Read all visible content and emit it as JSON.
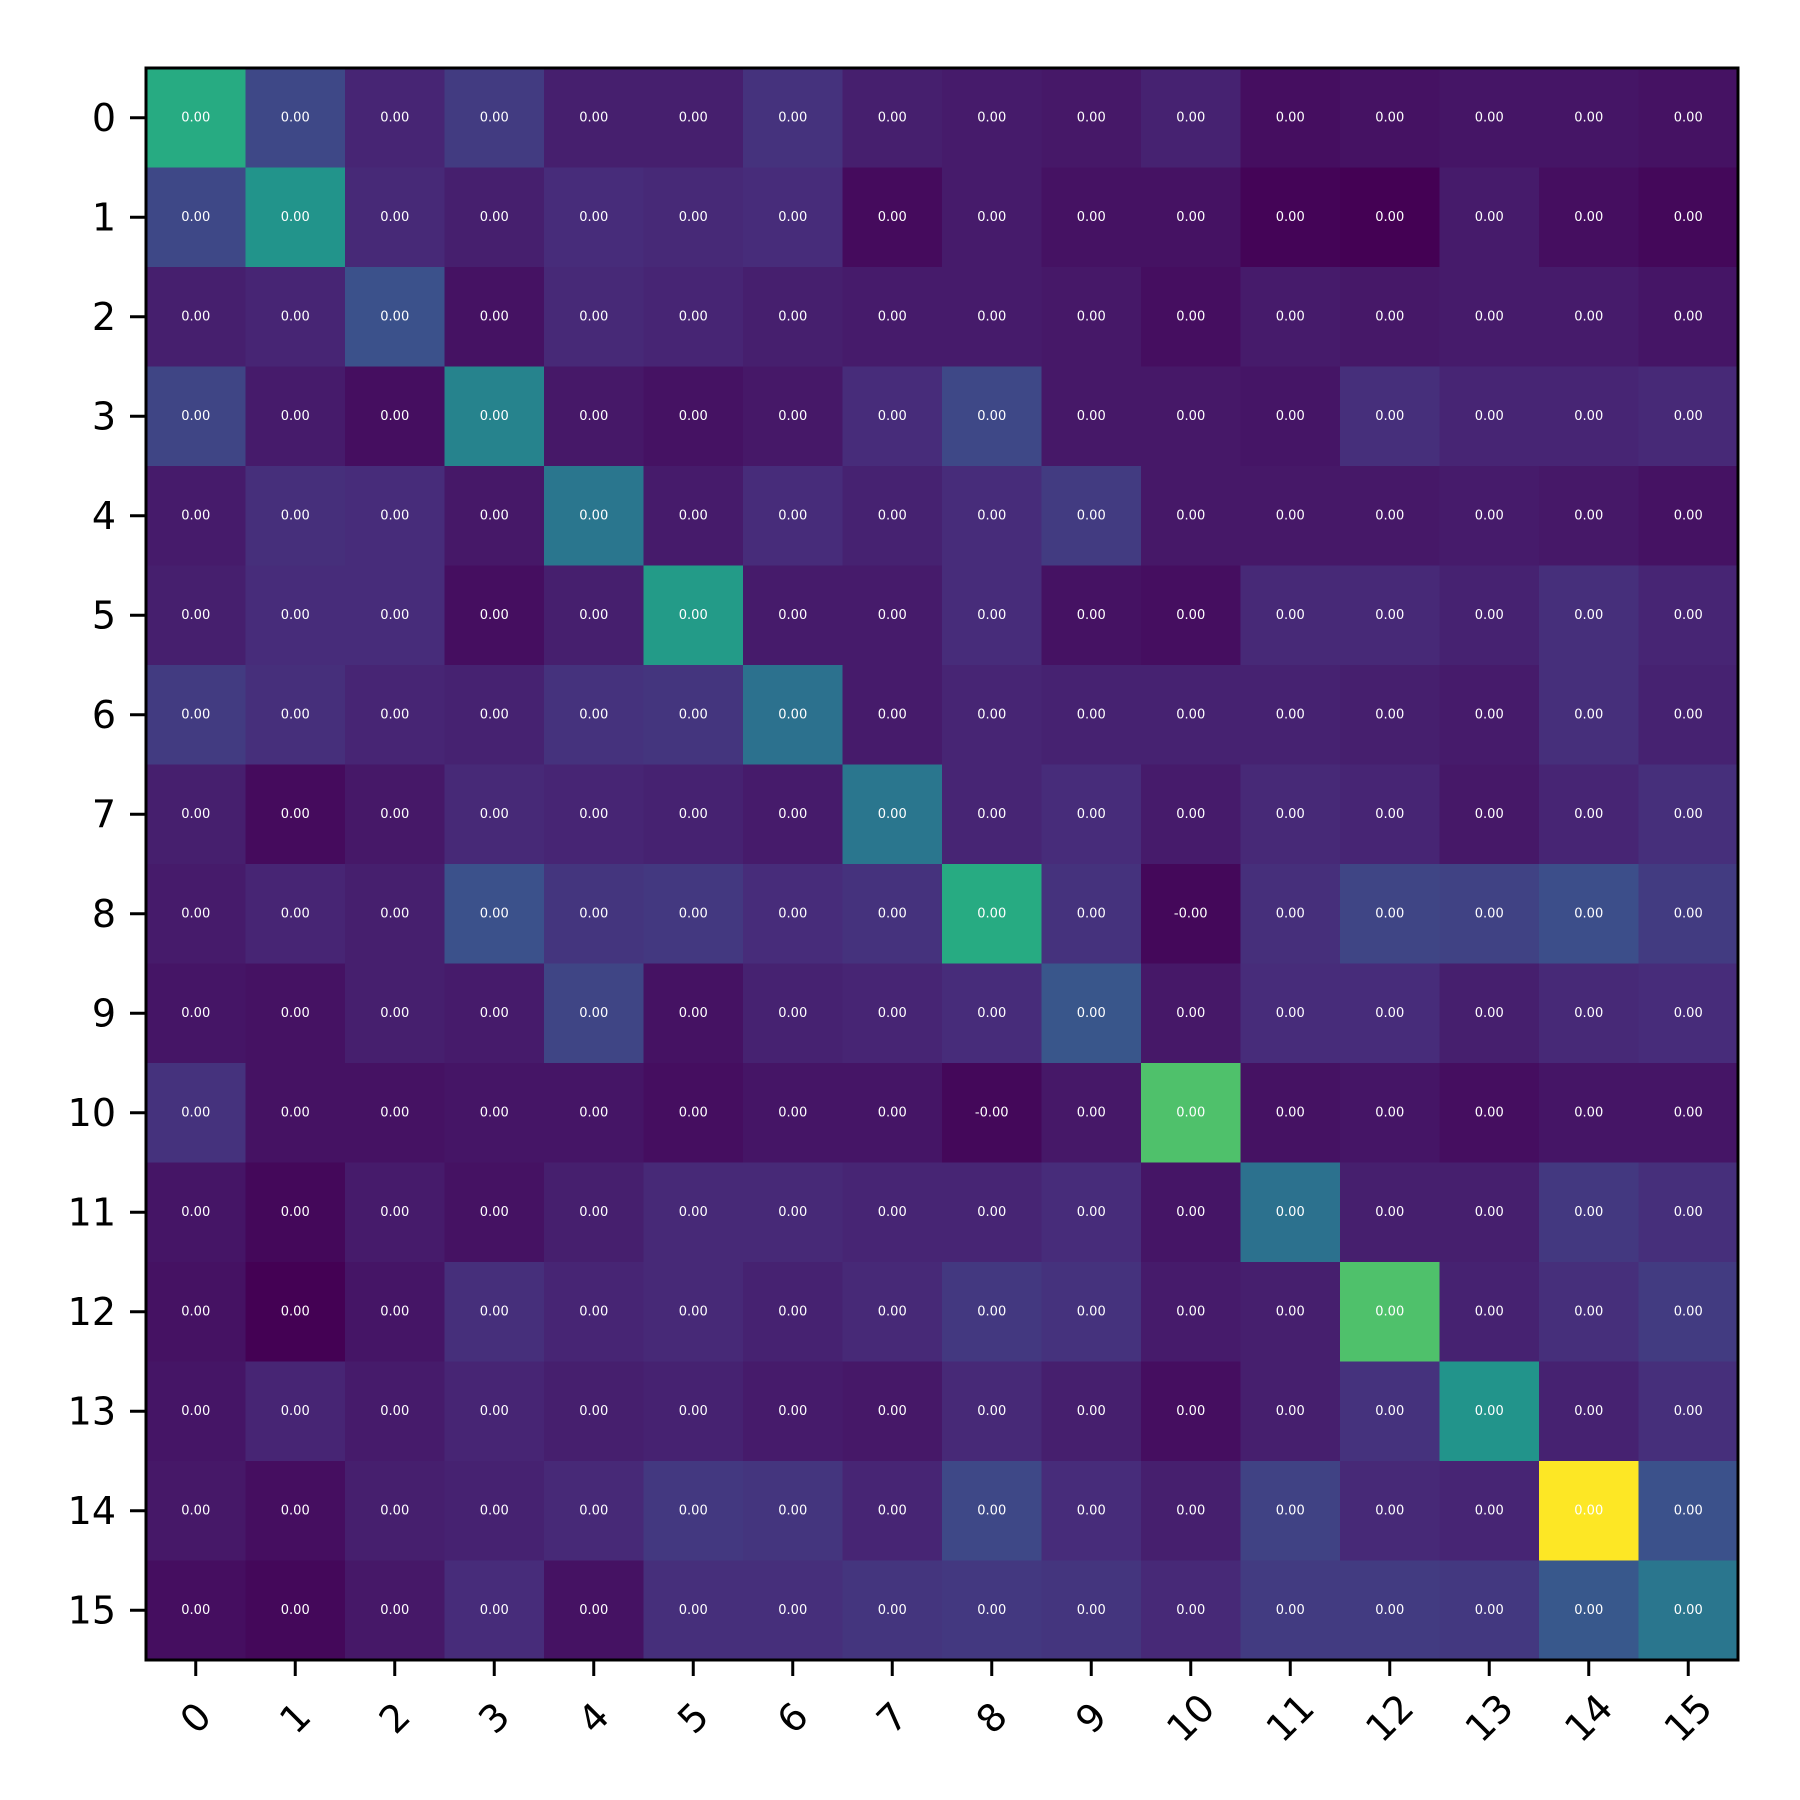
{
  "chart_data": {
    "type": "heatmap",
    "title": "",
    "xlabel": "",
    "ylabel": "",
    "colormap": "viridis",
    "x_tick_labels": [
      "0",
      "1",
      "2",
      "3",
      "4",
      "5",
      "6",
      "7",
      "8",
      "9",
      "10",
      "11",
      "12",
      "13",
      "14",
      "15"
    ],
    "y_tick_labels": [
      "0",
      "1",
      "2",
      "3",
      "4",
      "5",
      "6",
      "7",
      "8",
      "9",
      "10",
      "11",
      "12",
      "13",
      "14",
      "15"
    ],
    "x_tick_rotation_deg": -45,
    "cell_labels": [
      [
        "0.00",
        "0.00",
        "0.00",
        "0.00",
        "0.00",
        "0.00",
        "0.00",
        "0.00",
        "0.00",
        "0.00",
        "0.00",
        "0.00",
        "0.00",
        "0.00",
        "0.00",
        "0.00"
      ],
      [
        "0.00",
        "0.00",
        "0.00",
        "0.00",
        "0.00",
        "0.00",
        "0.00",
        "0.00",
        "0.00",
        "0.00",
        "0.00",
        "0.00",
        "0.00",
        "0.00",
        "0.00",
        "0.00"
      ],
      [
        "0.00",
        "0.00",
        "0.00",
        "0.00",
        "0.00",
        "0.00",
        "0.00",
        "0.00",
        "0.00",
        "0.00",
        "0.00",
        "0.00",
        "0.00",
        "0.00",
        "0.00",
        "0.00"
      ],
      [
        "0.00",
        "0.00",
        "0.00",
        "0.00",
        "0.00",
        "0.00",
        "0.00",
        "0.00",
        "0.00",
        "0.00",
        "0.00",
        "0.00",
        "0.00",
        "0.00",
        "0.00",
        "0.00"
      ],
      [
        "0.00",
        "0.00",
        "0.00",
        "0.00",
        "0.00",
        "0.00",
        "0.00",
        "0.00",
        "0.00",
        "0.00",
        "0.00",
        "0.00",
        "0.00",
        "0.00",
        "0.00",
        "0.00"
      ],
      [
        "0.00",
        "0.00",
        "0.00",
        "0.00",
        "0.00",
        "0.00",
        "0.00",
        "0.00",
        "0.00",
        "0.00",
        "0.00",
        "0.00",
        "0.00",
        "0.00",
        "0.00",
        "0.00"
      ],
      [
        "0.00",
        "0.00",
        "0.00",
        "0.00",
        "0.00",
        "0.00",
        "0.00",
        "0.00",
        "0.00",
        "0.00",
        "0.00",
        "0.00",
        "0.00",
        "0.00",
        "0.00",
        "0.00"
      ],
      [
        "0.00",
        "0.00",
        "0.00",
        "0.00",
        "0.00",
        "0.00",
        "0.00",
        "0.00",
        "0.00",
        "0.00",
        "0.00",
        "0.00",
        "0.00",
        "0.00",
        "0.00",
        "0.00"
      ],
      [
        "0.00",
        "0.00",
        "0.00",
        "0.00",
        "0.00",
        "0.00",
        "0.00",
        "0.00",
        "0.00",
        "0.00",
        "-0.00",
        "0.00",
        "0.00",
        "0.00",
        "0.00",
        "0.00"
      ],
      [
        "0.00",
        "0.00",
        "0.00",
        "0.00",
        "0.00",
        "0.00",
        "0.00",
        "0.00",
        "0.00",
        "0.00",
        "0.00",
        "0.00",
        "0.00",
        "0.00",
        "0.00",
        "0.00"
      ],
      [
        "0.00",
        "0.00",
        "0.00",
        "0.00",
        "0.00",
        "0.00",
        "0.00",
        "0.00",
        "-0.00",
        "0.00",
        "0.00",
        "0.00",
        "0.00",
        "0.00",
        "0.00",
        "0.00"
      ],
      [
        "0.00",
        "0.00",
        "0.00",
        "0.00",
        "0.00",
        "0.00",
        "0.00",
        "0.00",
        "0.00",
        "0.00",
        "0.00",
        "0.00",
        "0.00",
        "0.00",
        "0.00",
        "0.00"
      ],
      [
        "0.00",
        "0.00",
        "0.00",
        "0.00",
        "0.00",
        "0.00",
        "0.00",
        "0.00",
        "0.00",
        "0.00",
        "0.00",
        "0.00",
        "0.00",
        "0.00",
        "0.00",
        "0.00"
      ],
      [
        "0.00",
        "0.00",
        "0.00",
        "0.00",
        "0.00",
        "0.00",
        "0.00",
        "0.00",
        "0.00",
        "0.00",
        "0.00",
        "0.00",
        "0.00",
        "0.00",
        "0.00",
        "0.00"
      ],
      [
        "0.00",
        "0.00",
        "0.00",
        "0.00",
        "0.00",
        "0.00",
        "0.00",
        "0.00",
        "0.00",
        "0.00",
        "0.00",
        "0.00",
        "0.00",
        "0.00",
        "0.00",
        "0.00"
      ],
      [
        "0.00",
        "0.00",
        "0.00",
        "0.00",
        "0.00",
        "0.00",
        "0.00",
        "0.00",
        "0.00",
        "0.00",
        "0.00",
        "0.00",
        "0.00",
        "0.00",
        "0.00",
        "0.00"
      ]
    ],
    "color_intensity": [
      [
        0.62,
        0.22,
        0.11,
        0.18,
        0.09,
        0.09,
        0.15,
        0.09,
        0.08,
        0.07,
        0.1,
        0.04,
        0.05,
        0.06,
        0.06,
        0.05
      ],
      [
        0.22,
        0.52,
        0.12,
        0.09,
        0.13,
        0.12,
        0.13,
        0.03,
        0.08,
        0.05,
        0.05,
        0.01,
        0.0,
        0.08,
        0.04,
        0.02
      ],
      [
        0.09,
        0.11,
        0.25,
        0.05,
        0.12,
        0.11,
        0.09,
        0.08,
        0.08,
        0.07,
        0.04,
        0.08,
        0.07,
        0.08,
        0.08,
        0.06
      ],
      [
        0.21,
        0.08,
        0.04,
        0.45,
        0.07,
        0.05,
        0.07,
        0.13,
        0.22,
        0.07,
        0.07,
        0.06,
        0.14,
        0.11,
        0.11,
        0.12
      ],
      [
        0.08,
        0.14,
        0.13,
        0.07,
        0.4,
        0.08,
        0.13,
        0.1,
        0.13,
        0.18,
        0.07,
        0.07,
        0.07,
        0.08,
        0.07,
        0.05
      ],
      [
        0.09,
        0.13,
        0.13,
        0.04,
        0.09,
        0.55,
        0.08,
        0.08,
        0.13,
        0.05,
        0.04,
        0.12,
        0.12,
        0.1,
        0.14,
        0.11
      ],
      [
        0.18,
        0.14,
        0.11,
        0.1,
        0.15,
        0.16,
        0.38,
        0.08,
        0.11,
        0.1,
        0.1,
        0.1,
        0.09,
        0.08,
        0.14,
        0.1
      ],
      [
        0.09,
        0.03,
        0.07,
        0.12,
        0.11,
        0.1,
        0.08,
        0.4,
        0.11,
        0.13,
        0.08,
        0.12,
        0.11,
        0.07,
        0.11,
        0.14
      ],
      [
        0.08,
        0.11,
        0.09,
        0.25,
        0.16,
        0.17,
        0.13,
        0.15,
        0.62,
        0.15,
        0.02,
        0.14,
        0.21,
        0.2,
        0.24,
        0.18
      ],
      [
        0.06,
        0.05,
        0.09,
        0.08,
        0.21,
        0.05,
        0.1,
        0.11,
        0.13,
        0.27,
        0.07,
        0.13,
        0.13,
        0.09,
        0.12,
        0.13
      ],
      [
        0.15,
        0.05,
        0.05,
        0.06,
        0.06,
        0.04,
        0.06,
        0.06,
        0.02,
        0.07,
        0.72,
        0.05,
        0.06,
        0.04,
        0.06,
        0.06
      ],
      [
        0.06,
        0.02,
        0.08,
        0.05,
        0.09,
        0.12,
        0.12,
        0.11,
        0.11,
        0.13,
        0.06,
        0.38,
        0.09,
        0.09,
        0.17,
        0.14
      ],
      [
        0.05,
        0.0,
        0.06,
        0.14,
        0.11,
        0.12,
        0.1,
        0.12,
        0.17,
        0.15,
        0.08,
        0.09,
        0.72,
        0.1,
        0.14,
        0.18
      ],
      [
        0.06,
        0.11,
        0.08,
        0.11,
        0.09,
        0.1,
        0.08,
        0.07,
        0.12,
        0.09,
        0.04,
        0.09,
        0.15,
        0.52,
        0.1,
        0.14
      ],
      [
        0.07,
        0.04,
        0.09,
        0.1,
        0.12,
        0.17,
        0.16,
        0.11,
        0.22,
        0.13,
        0.09,
        0.2,
        0.12,
        0.11,
        1.0,
        0.25
      ],
      [
        0.04,
        0.02,
        0.07,
        0.13,
        0.05,
        0.14,
        0.14,
        0.16,
        0.17,
        0.16,
        0.12,
        0.18,
        0.18,
        0.17,
        0.28,
        0.4
      ]
    ]
  }
}
